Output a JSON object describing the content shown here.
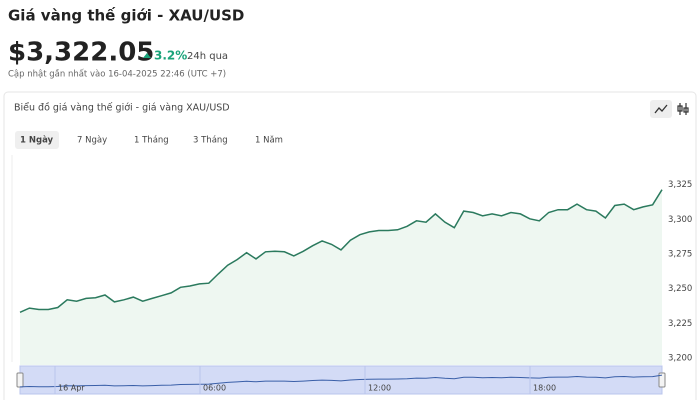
{
  "header": {
    "title": "Giá vàng thế giới - XAU/USD",
    "price": "$3,322.05",
    "change": "3.2%",
    "period": "24h qua",
    "updated": "Cập nhật gần nhất vào 16-04-2025 22:46 (UTC +7)"
  },
  "card": {
    "title": "Biểu đồ giá vàng thế giới - giá vàng XAU/USD",
    "tabs": [
      "1 Ngày",
      "7 Ngày",
      "1 Tháng",
      "3 Tháng",
      "1 Năm"
    ]
  },
  "chart_data": {
    "type": "line",
    "color": "#2b7a5e",
    "fill": "#eef7f1",
    "values": [
      3233,
      3236,
      3235,
      3235,
      3236.5,
      3242,
      3241,
      3243,
      3243.5,
      3245.5,
      3240.5,
      3242,
      3244,
      3241,
      3243,
      3245,
      3247,
      3251,
      3252,
      3253.5,
      3254,
      3260.7,
      3267,
      3271,
      3276,
      3271.5,
      3276.6,
      3277,
      3276.6,
      3273.7,
      3277,
      3281,
      3284.5,
      3282,
      3278,
      3285,
      3289,
      3291,
      3292,
      3292,
      3292.5,
      3295,
      3299,
      3298,
      3304,
      3298,
      3294,
      3306,
      3305,
      3302.6,
      3304,
      3302.6,
      3305,
      3304,
      3300.4,
      3299,
      3305,
      3307,
      3307,
      3311,
      3307,
      3306,
      3301,
      3310,
      3311,
      3307,
      3309,
      3310.5,
      3321.4
    ],
    "ylim": [
      3195,
      3345
    ],
    "yticks": [
      {
        "value": 3200,
        "label": "3,200"
      },
      {
        "value": 3225,
        "label": "3,225"
      },
      {
        "value": 3250,
        "label": "3,250"
      },
      {
        "value": 3275,
        "label": "3,275"
      },
      {
        "value": 3300,
        "label": "3,300"
      },
      {
        "value": 3325,
        "label": "3,325"
      }
    ],
    "navigator": {
      "labels": [
        "16 Apr",
        "06:00",
        "12:00",
        "18:00"
      ]
    }
  }
}
